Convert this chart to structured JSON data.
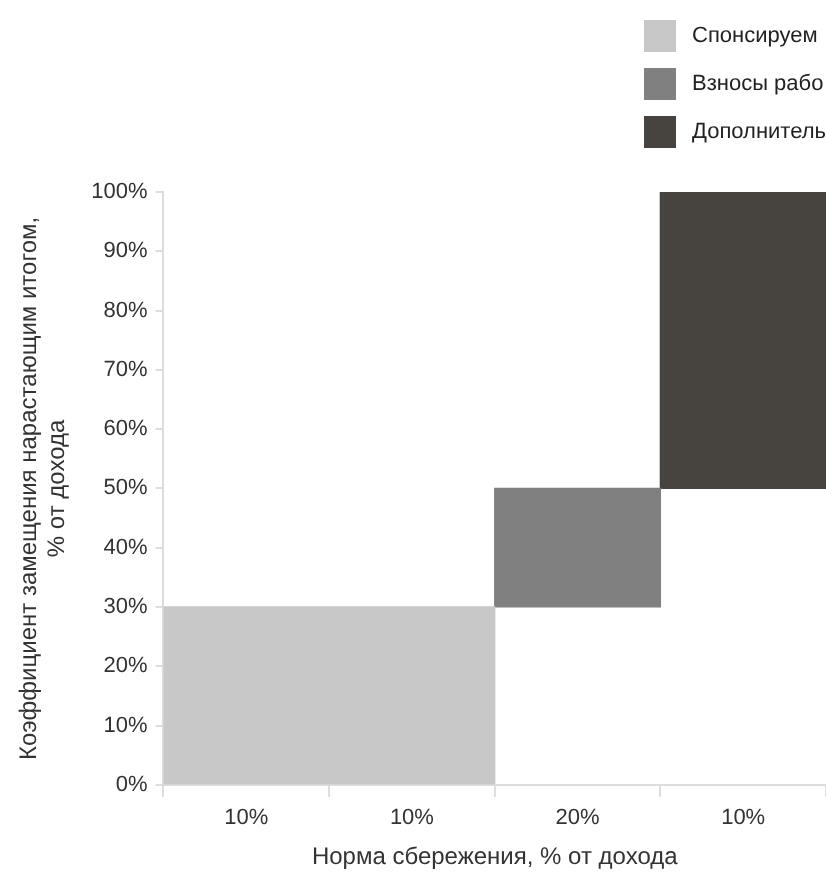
{
  "chart_data": {
    "type": "bar",
    "xlabel": "Норма сбережения, % от дохода",
    "ylabel": "Коэффициент замещения нарастающим итогом,\n% от дохода",
    "categories": [
      "10%",
      "10%",
      "20%",
      "10%"
    ],
    "series": [
      {
        "name": "Спонсируем",
        "color": "#c8c8c8",
        "values": [
          30,
          30,
          null,
          null
        ],
        "base": [
          0,
          0,
          null,
          null
        ]
      },
      {
        "name": "Взносы рабо",
        "color": "#808080",
        "values": [
          null,
          null,
          20,
          null
        ],
        "base": [
          null,
          null,
          30,
          null
        ]
      },
      {
        "name": "Дополнитель",
        "color": "#47433f",
        "values": [
          null,
          null,
          null,
          50
        ],
        "base": [
          null,
          null,
          null,
          50
        ]
      }
    ],
    "ylim": [
      0,
      100
    ],
    "yticks": [
      {
        "value": 0,
        "label": "0%"
      },
      {
        "value": 10,
        "label": "10%"
      },
      {
        "value": 20,
        "label": "20%"
      },
      {
        "value": 30,
        "label": "30%"
      },
      {
        "value": 40,
        "label": "40%"
      },
      {
        "value": 50,
        "label": "50%"
      },
      {
        "value": 60,
        "label": "60%"
      },
      {
        "value": 70,
        "label": "70%"
      },
      {
        "value": 80,
        "label": "80%"
      },
      {
        "value": 90,
        "label": "90%"
      },
      {
        "value": 100,
        "label": "100%"
      }
    ],
    "grid": false,
    "legend": "top right"
  }
}
